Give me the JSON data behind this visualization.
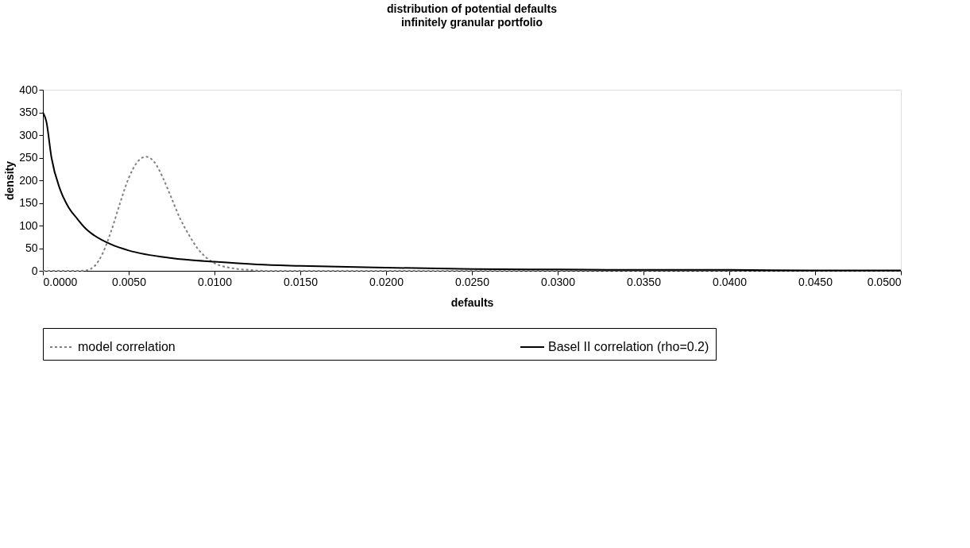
{
  "chart_data": {
    "type": "line",
    "title": "distribution of potential defaults",
    "subtitle": "infinitely granular portfolio",
    "xlabel": "defaults",
    "ylabel": "density",
    "xlim": [
      0,
      0.05
    ],
    "ylim": [
      0,
      400
    ],
    "xticks": [
      {
        "value": 0,
        "label": "0.0000"
      },
      {
        "value": 0.005,
        "label": "0.0050"
      },
      {
        "value": 0.01,
        "label": "0.0100"
      },
      {
        "value": 0.015,
        "label": "0.0150"
      },
      {
        "value": 0.02,
        "label": "0.0200"
      },
      {
        "value": 0.025,
        "label": "0.0250"
      },
      {
        "value": 0.03,
        "label": "0.0300"
      },
      {
        "value": 0.035,
        "label": "0.0350"
      },
      {
        "value": 0.04,
        "label": "0.0400"
      },
      {
        "value": 0.045,
        "label": "0.0450"
      },
      {
        "value": 0.05,
        "label": "0.0500"
      }
    ],
    "yticks": [
      0,
      50,
      100,
      150,
      200,
      250,
      300,
      350,
      400
    ],
    "grid": false,
    "legend": "bottom",
    "marker": "none",
    "series": [
      {
        "name": "model correlation",
        "color": "#808080",
        "line_style": "dotted",
        "x": [
          0,
          0.001,
          0.002,
          0.0025,
          0.003,
          0.0035,
          0.004,
          0.0045,
          0.005,
          0.0055,
          0.006,
          0.0065,
          0.007,
          0.0075,
          0.008,
          0.0085,
          0.009,
          0.0095,
          0.01,
          0.011,
          0.012,
          0.013,
          0.015,
          0.02,
          0.03,
          0.04,
          0.05
        ],
        "values": [
          0,
          0,
          0,
          1,
          10,
          40,
          90,
          150,
          205,
          240,
          252,
          240,
          205,
          160,
          115,
          80,
          50,
          30,
          17,
          6,
          2,
          0,
          0,
          0,
          0,
          0,
          0
        ]
      },
      {
        "name": "Basel II correlation (rho=0.2)",
        "color": "#000000",
        "line_style": "solid",
        "x": [
          0,
          0.0002,
          0.0005,
          0.001,
          0.0015,
          0.002,
          0.0025,
          0.003,
          0.004,
          0.005,
          0.0075,
          0.01,
          0.0125,
          0.015,
          0.02,
          0.025,
          0.03,
          0.035,
          0.04,
          0.045,
          0.05
        ],
        "values": [
          350,
          330,
          250,
          180,
          140,
          115,
          93,
          78,
          58,
          45,
          28,
          20,
          14,
          11,
          7,
          4,
          3,
          2,
          2,
          1,
          1
        ]
      }
    ]
  }
}
